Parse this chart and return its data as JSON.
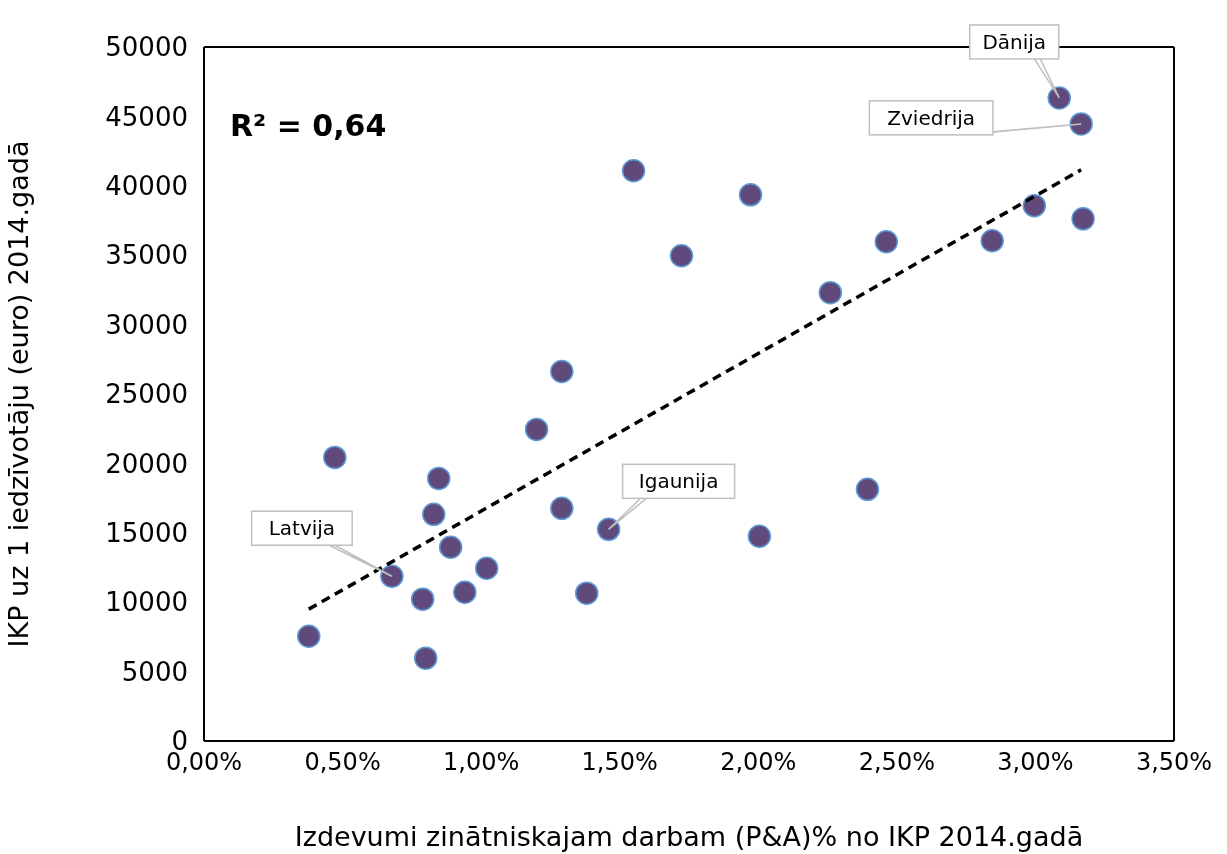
{
  "chart_data": {
    "type": "scatter",
    "xlabel": "Izdevumi zinātniskajam darbam (P&A)% no IKP 2014.gadā",
    "ylabel": "IKP uz 1 iedzīvotāju (euro) 2014.gadā",
    "xlim": [
      0,
      3.5
    ],
    "xticks": [
      {
        "value": 0,
        "label": "0,00%"
      },
      {
        "value": 0.5,
        "label": "0,50%"
      },
      {
        "value": 1,
        "label": "1,00%"
      },
      {
        "value": 1.5,
        "label": "1,50%"
      },
      {
        "value": 2,
        "label": "2,00%"
      },
      {
        "value": 2.5,
        "label": "2,50%"
      },
      {
        "value": 3,
        "label": "3,00%"
      },
      {
        "value": 3.5,
        "label": "3,50%"
      }
    ],
    "ylim": [
      0,
      50000
    ],
    "yticks": [
      0,
      5000,
      10000,
      15000,
      20000,
      25000,
      30000,
      35000,
      40000,
      45000,
      50000
    ],
    "series": [
      {
        "type": "scatter",
        "color": "#604a7b",
        "marker": "circle",
        "x": [
          0.378,
          0.472,
          0.678,
          0.789,
          0.8,
          0.829,
          0.847,
          0.89,
          0.941,
          1.02,
          1.2,
          1.291,
          1.291,
          1.381,
          1.46,
          1.55,
          1.723,
          1.972,
          2.004,
          2.26,
          2.394,
          2.462,
          2.844,
          2.996,
          3.086,
          3.165,
          3.172
        ],
        "values": [
          7550,
          20430,
          11870,
          10220,
          5970,
          16330,
          18920,
          13960,
          10720,
          12450,
          22450,
          26620,
          16760,
          10650,
          15250,
          41080,
          34960,
          39350,
          14750,
          32300,
          18130,
          35970,
          36040,
          38560,
          46330,
          44460,
          37620
        ]
      },
      {
        "type": "line",
        "color": "#000000",
        "line_style": "dashed",
        "x": [
          0.378,
          3.165
        ],
        "values": [
          9500,
          41150
        ]
      }
    ],
    "annotations": [
      "R² = 0,64",
      {
        "text": "Dānija",
        "x": 3.086,
        "y": 46330
      },
      {
        "text": "Zviedrija",
        "x": 3.165,
        "y": 44460
      },
      {
        "text": "Latvija",
        "x": 0.678,
        "y": 11870
      },
      {
        "text": "Igaunija",
        "x": 1.46,
        "y": 15250
      }
    ]
  }
}
